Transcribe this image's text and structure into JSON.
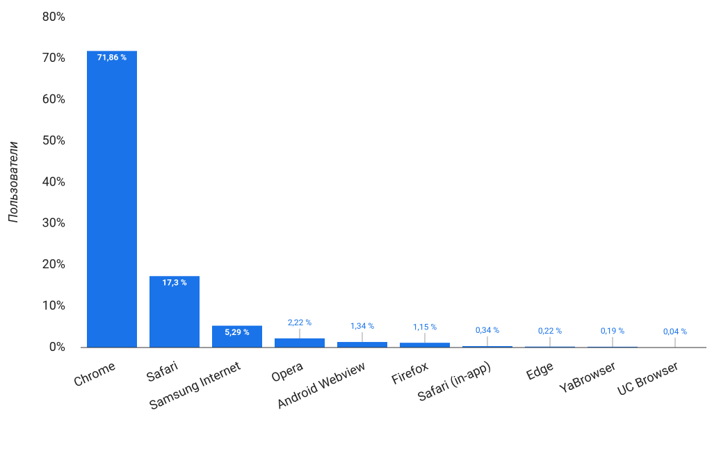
{
  "chart_data": {
    "type": "bar",
    "y_label": "Пользователи",
    "categories": [
      "Chrome",
      "Safari",
      "Samsung Internet",
      "Opera",
      "Android Webview",
      "Firefox",
      "Safari (in-app)",
      "Edge",
      "YaBrowser",
      "UC Browser"
    ],
    "values": [
      71.86,
      17.3,
      5.29,
      2.22,
      1.34,
      1.15,
      0.34,
      0.22,
      0.19,
      0.04
    ],
    "value_labels": [
      "71,86 %",
      "17,3 %",
      "5,29 %",
      "2,22 %",
      "1,34 %",
      "1,15 %",
      "0,34 %",
      "0,22 %",
      "0,19 %",
      "0,04 %"
    ],
    "color": "#1a73e8",
    "ylim": [
      0,
      80
    ],
    "yticks": [
      {
        "value": 0,
        "label": "0%"
      },
      {
        "value": 10,
        "label": "10%"
      },
      {
        "value": 20,
        "label": "20%"
      },
      {
        "value": 30,
        "label": "30%"
      },
      {
        "value": 40,
        "label": "40%"
      },
      {
        "value": 50,
        "label": "50%"
      },
      {
        "value": 60,
        "label": "60%"
      },
      {
        "value": 70,
        "label": "70%"
      },
      {
        "value": 80,
        "label": "80%"
      }
    ],
    "grid": false
  }
}
